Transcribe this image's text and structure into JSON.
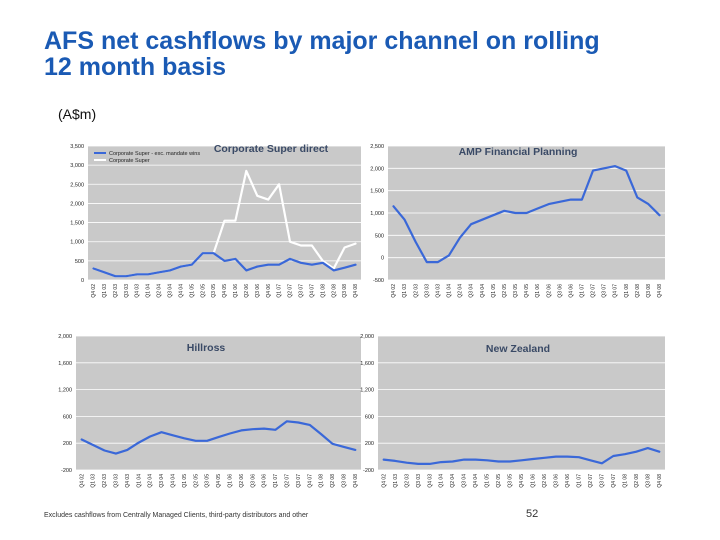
{
  "page": {
    "title": "AFS net cashflows by major channel on rolling\n12 month basis",
    "unit": "(A$m)",
    "footnote": "Excludes cashflows from Centrally Managed Clients, third-party distributors and other",
    "page_number": "52"
  },
  "colors": {
    "plot_background": "#c9c9c9",
    "grid": "#ffffff",
    "title_blue": "#1a5ab4",
    "series_blue": "#3a68d8",
    "series_white": "#ffffff",
    "chart_title": "#3a4a66"
  },
  "chart_data": [
    {
      "id": "corporate-super",
      "type": "line",
      "title": "Corporate Super direct",
      "categories": [
        "Q4 02",
        "Q1 03",
        "Q2 03",
        "Q3 03",
        "Q4 03",
        "Q1 04",
        "Q2 04",
        "Q3 04",
        "Q4 04",
        "Q1 05",
        "Q2 05",
        "Q3 05",
        "Q4 05",
        "Q1 06",
        "Q2 06",
        "Q3 06",
        "Q4 06",
        "Q1 07",
        "Q2 07",
        "Q3 07",
        "Q4 07",
        "Q1 08",
        "Q2 08",
        "Q3 08",
        "Q4 08"
      ],
      "y_ticks": [
        "0",
        "500",
        "1,000",
        "1,500",
        "2,000",
        "2,500",
        "3,000",
        "3,500"
      ],
      "ylim": [
        0,
        3500
      ],
      "legend_position": "top-left",
      "series": [
        {
          "name": "Corporate Super - exc. mandate wins",
          "color": "#3a68d8",
          "values": [
            300,
            200,
            100,
            100,
            150,
            150,
            200,
            250,
            350,
            400,
            700,
            700,
            500,
            550,
            250,
            350,
            400,
            400,
            550,
            450,
            400,
            450,
            250,
            320,
            400
          ]
        },
        {
          "name": "Corporate Super",
          "color": "#ffffff",
          "values": [
            300,
            200,
            100,
            100,
            150,
            150,
            200,
            250,
            350,
            400,
            700,
            700,
            1550,
            1550,
            2850,
            2200,
            2100,
            2500,
            1000,
            900,
            900,
            500,
            300,
            850,
            950
          ]
        }
      ]
    },
    {
      "id": "amp-financial-planning",
      "type": "line",
      "title": "AMP Financial Planning",
      "categories": [
        "Q4 02",
        "Q1 03",
        "Q2 03",
        "Q3 03",
        "Q4 03",
        "Q1 04",
        "Q2 04",
        "Q3 04",
        "Q4 04",
        "Q1 05",
        "Q2 05",
        "Q3 05",
        "Q4 05",
        "Q1 06",
        "Q2 06",
        "Q3 06",
        "Q4 06",
        "Q1 07",
        "Q2 07",
        "Q3 07",
        "Q4 07",
        "Q1 08",
        "Q2 08",
        "Q3 08",
        "Q4 08"
      ],
      "y_ticks": [
        "-500",
        "0",
        "500",
        "1,000",
        "1,500",
        "2,000",
        "2,500"
      ],
      "ylim": [
        -500,
        2500
      ],
      "series": [
        {
          "name": "",
          "color": "#3a68d8",
          "values": [
            1150,
            850,
            350,
            -100,
            -100,
            50,
            450,
            750,
            850,
            950,
            1050,
            1000,
            1000,
            1100,
            1200,
            1250,
            1300,
            1300,
            1950,
            2000,
            2050,
            1950,
            1350,
            1200,
            950
          ]
        }
      ]
    },
    {
      "id": "hillross",
      "type": "line",
      "title": "Hillross",
      "categories": [
        "Q4 02",
        "Q1 03",
        "Q2 03",
        "Q3 03",
        "Q4 03",
        "Q1 04",
        "Q2 04",
        "Q3 04",
        "Q4 04",
        "Q1 05",
        "Q2 05",
        "Q3 05",
        "Q4 05",
        "Q1 06",
        "Q2 06",
        "Q3 06",
        "Q4 06",
        "Q1 07",
        "Q2 07",
        "Q3 07",
        "Q4 07",
        "Q1 08",
        "Q2 08",
        "Q3 08",
        "Q4 08"
      ],
      "y_ticks": [
        "-200",
        "200",
        "600",
        "1,200",
        "1,600",
        "2,000"
      ],
      "ylim": [
        -200,
        2000
      ],
      "series": [
        {
          "name": "",
          "color": "#3a68d8",
          "values": [
            300,
            210,
            120,
            70,
            130,
            250,
            350,
            420,
            370,
            320,
            280,
            280,
            340,
            400,
            450,
            470,
            480,
            460,
            600,
            580,
            540,
            390,
            230,
            180,
            130
          ]
        }
      ]
    },
    {
      "id": "new-zealand",
      "type": "line",
      "title": "New Zealand",
      "categories": [
        "Q4 02",
        "Q1 03",
        "Q2 03",
        "Q3 03",
        "Q4 03",
        "Q1 04",
        "Q2 04",
        "Q3 04",
        "Q4 04",
        "Q1 05",
        "Q2 05",
        "Q3 05",
        "Q4 05",
        "Q1 06",
        "Q2 06",
        "Q3 06",
        "Q4 06",
        "Q1 07",
        "Q2 07",
        "Q3 07",
        "Q4 07",
        "Q1 08",
        "Q2 08",
        "Q3 08",
        "Q4 08"
      ],
      "y_ticks": [
        "-200",
        "200",
        "600",
        "1,200",
        "1,600",
        "2,000"
      ],
      "ylim": [
        -200,
        2000
      ],
      "series": [
        {
          "name": "",
          "color": "#3a68d8",
          "values": [
            -30,
            -50,
            -80,
            -100,
            -100,
            -70,
            -60,
            -30,
            -30,
            -40,
            -60,
            -60,
            -40,
            -20,
            0,
            20,
            20,
            10,
            -40,
            -90,
            30,
            60,
            100,
            160,
            100
          ]
        }
      ]
    }
  ]
}
